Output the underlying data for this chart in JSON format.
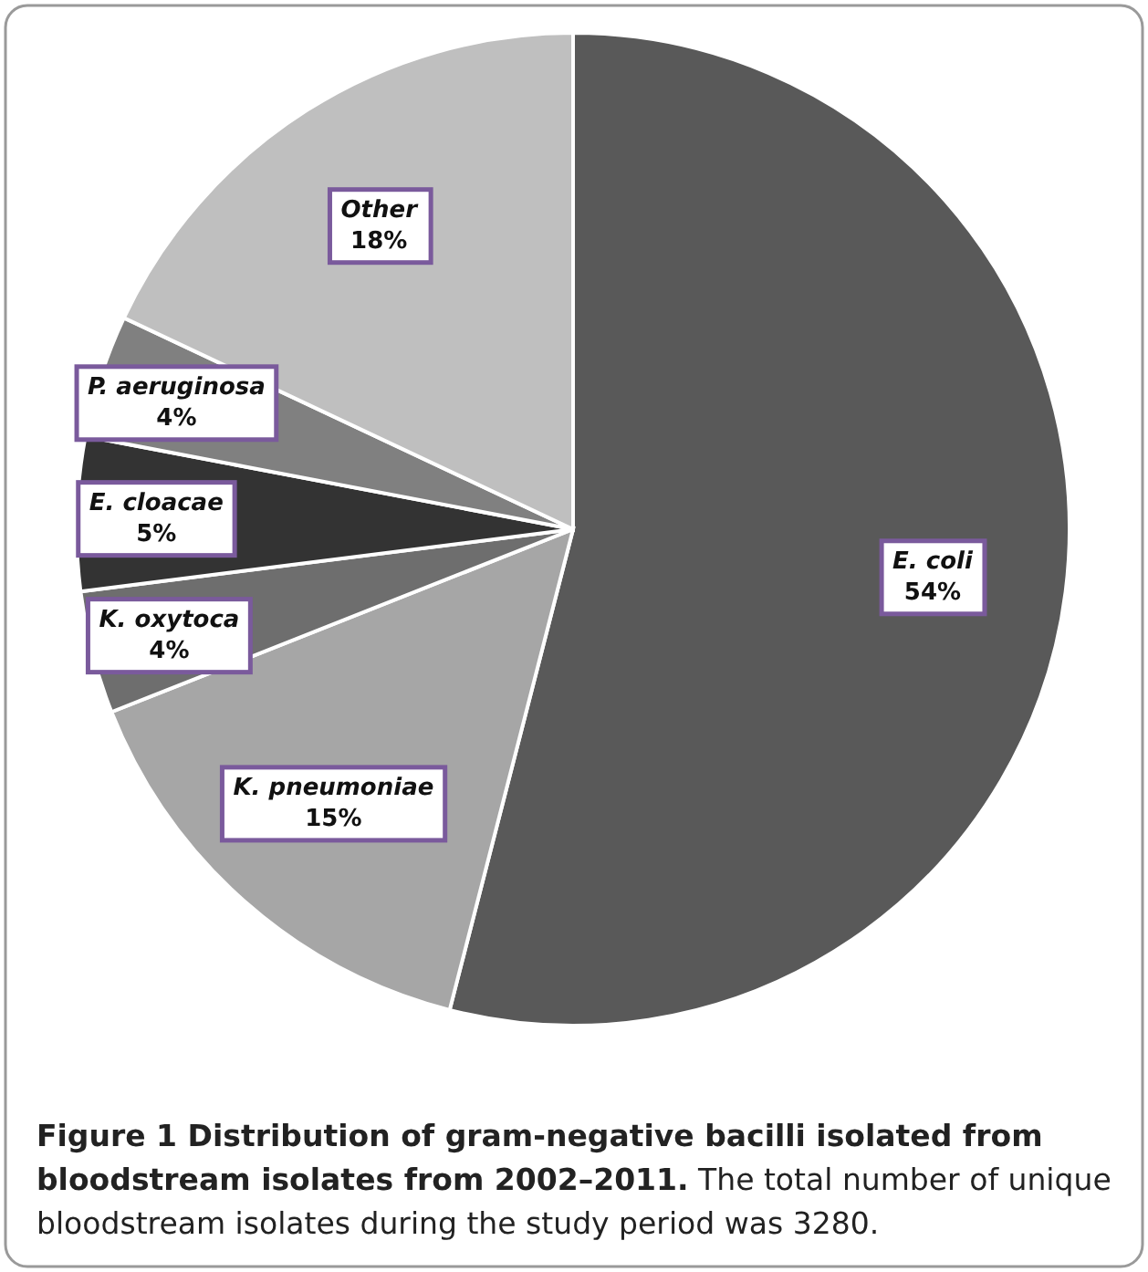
{
  "chart_data": {
    "type": "pie",
    "title": "Figure 1 Distribution of gram-negative bacilli isolated from bloodstream isolates from 2002–2011.",
    "annotations": [
      "The total number of unique bloodstream isolates during the study period was 3280."
    ],
    "categories": [
      "E. coli",
      "K. pneumoniae",
      "K. oxytoca",
      "E. cloacae",
      "P. aeruginosa",
      "Other"
    ],
    "values": [
      54,
      15,
      4,
      5,
      4,
      18
    ],
    "value_labels": [
      "54%",
      "15%",
      "4%",
      "5%",
      "4%",
      "18%"
    ],
    "colors": [
      "#595959",
      "#a6a6a6",
      "#6e6e6e",
      "#333333",
      "#808080",
      "#bfbfbf"
    ]
  }
}
